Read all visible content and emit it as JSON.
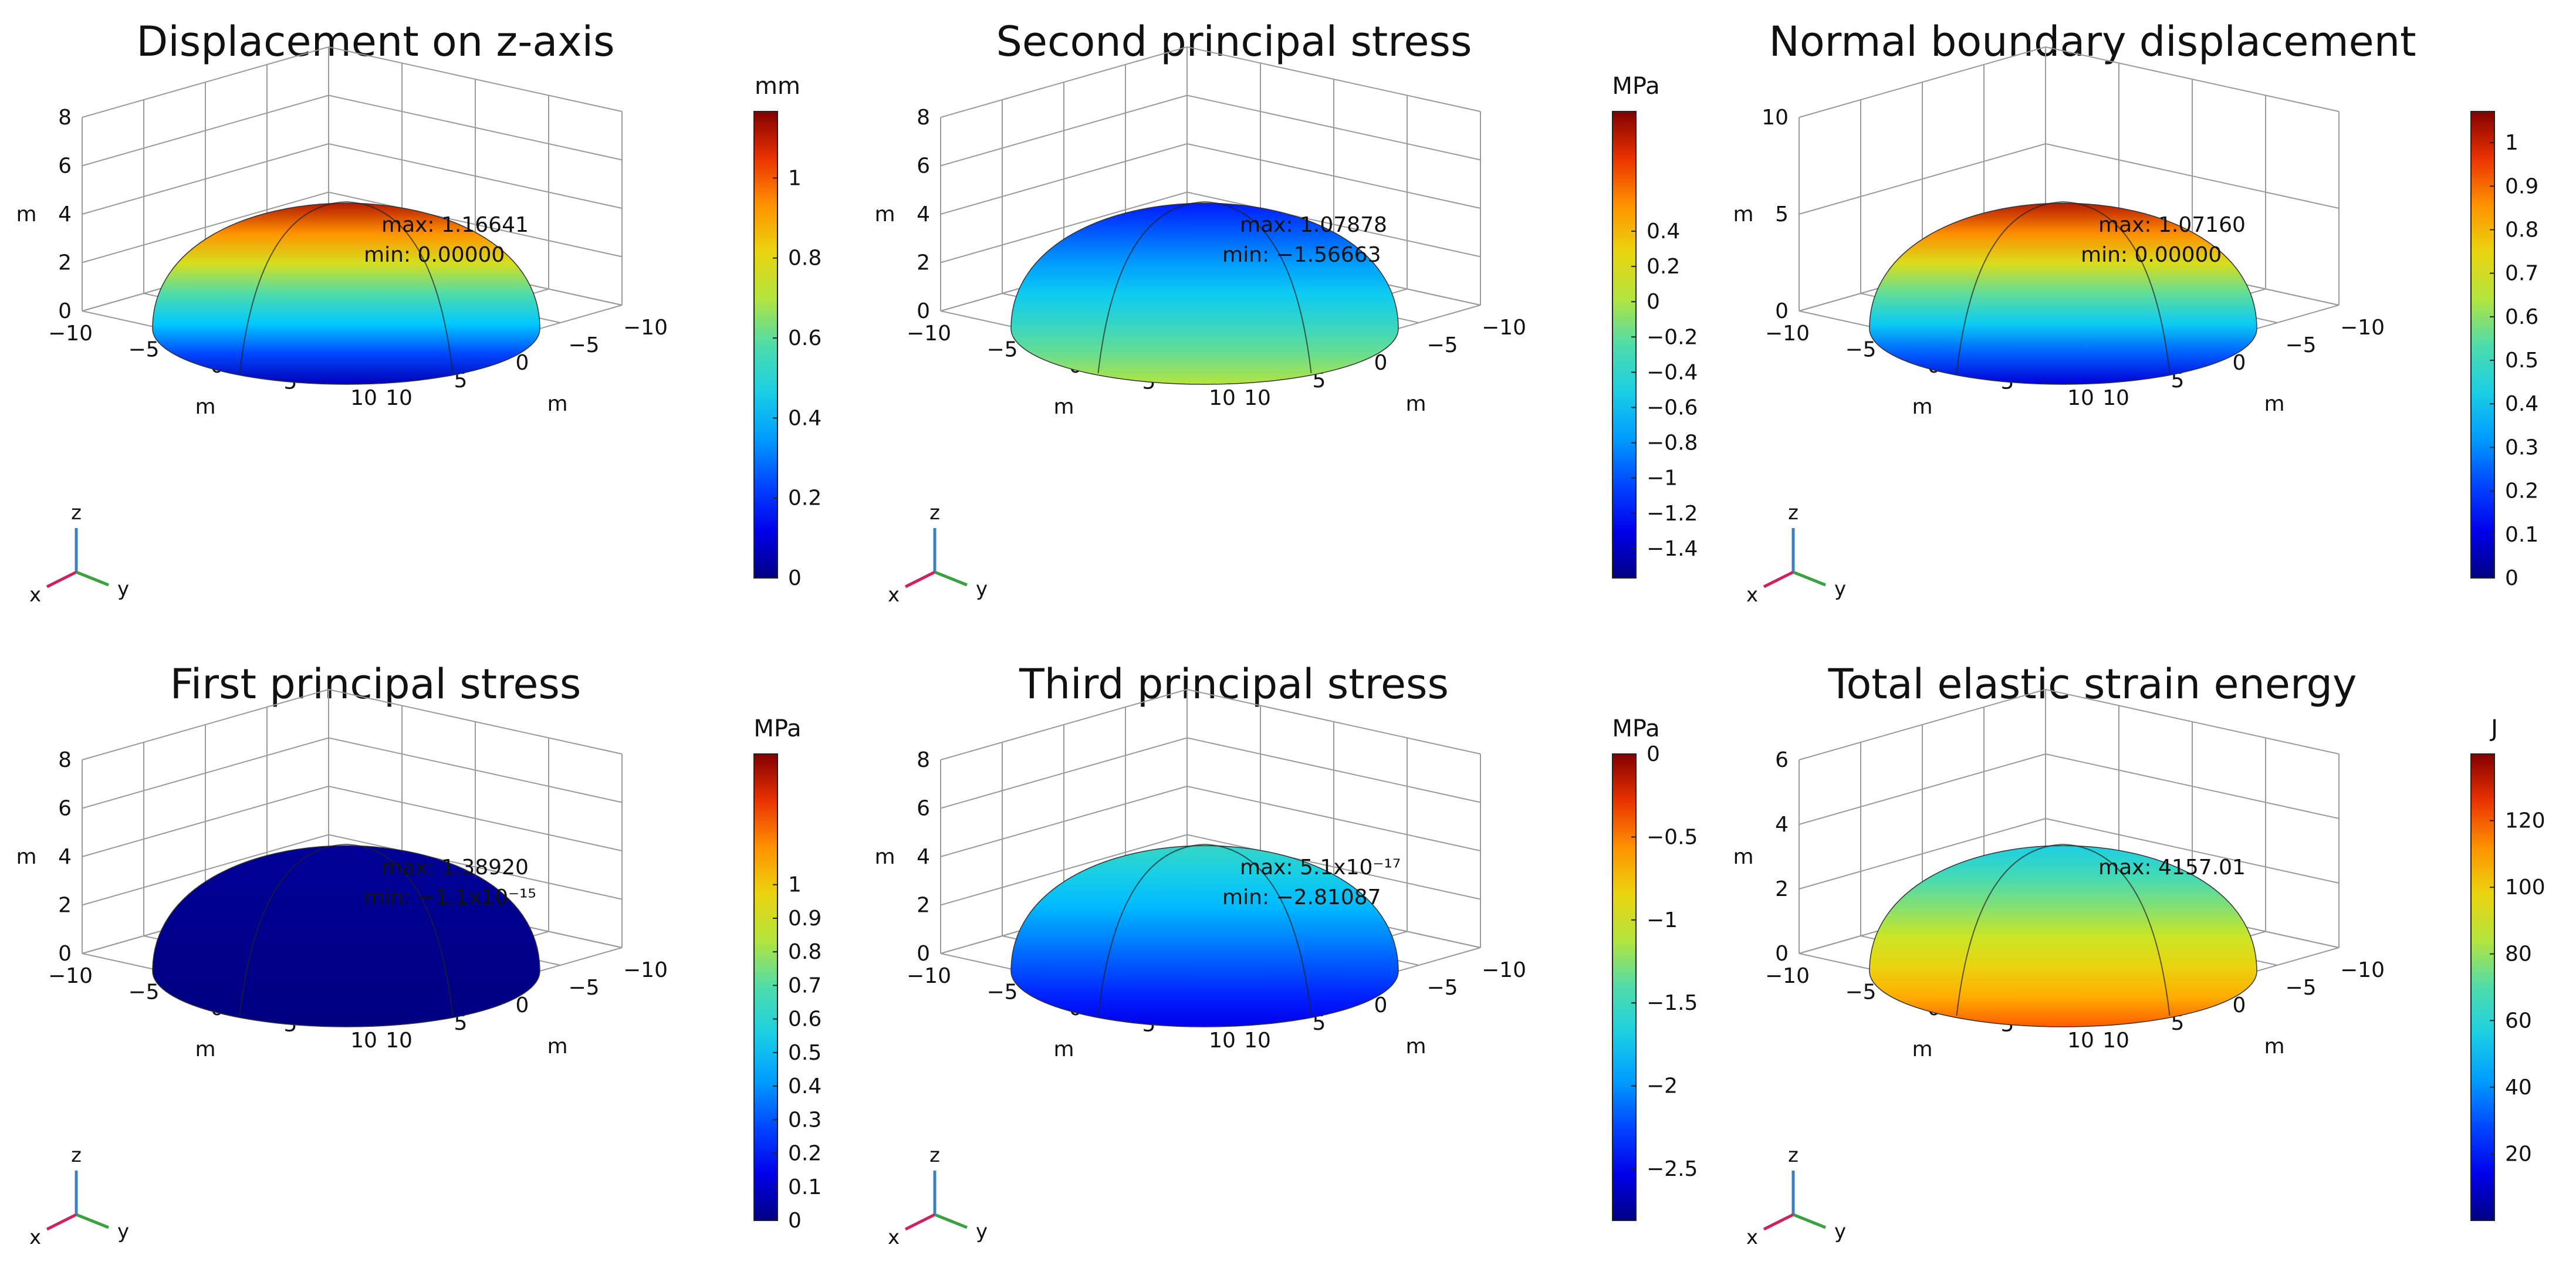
{
  "chart_data": [
    {
      "type": "3d-surface",
      "title": "Displacement on z-axis",
      "unit": "mm",
      "colorbar_ticks": [
        "0",
        "0.2",
        "0.4",
        "0.6",
        "0.8",
        "1"
      ],
      "colorbar_range": [
        0,
        1.16641
      ],
      "z_ticks": [
        "0",
        "2",
        "4",
        "6",
        "8"
      ],
      "x_ticks": [
        "−10",
        "−5",
        "0",
        "5",
        "10"
      ],
      "y_ticks": [
        "−10",
        "−5",
        "0",
        "5",
        "10"
      ],
      "axis_unit": "m",
      "max_label": "max: 1.16641",
      "min_label": "min: 0.00000",
      "colormap": "rainbow",
      "dome_top_value": 0.95,
      "dome_base_value": 0.05,
      "triad": {
        "x": "x",
        "y": "y",
        "z": "z"
      }
    },
    {
      "type": "3d-surface",
      "title": "Second principal stress",
      "unit": "MPa",
      "colorbar_ticks": [
        "−1.4",
        "−1.2",
        "−1",
        "−0.8",
        "−0.6",
        "−0.4",
        "−0.2",
        "0",
        "0.2",
        "0.4"
      ],
      "colorbar_range": [
        -1.56663,
        1.07878
      ],
      "z_ticks": [
        "0",
        "2",
        "4",
        "6",
        "8"
      ],
      "x_ticks": [
        "−10",
        "−5",
        "0",
        "5",
        "10"
      ],
      "y_ticks": [
        "−10",
        "−5",
        "0",
        "5",
        "10"
      ],
      "axis_unit": "m",
      "max_label": "max: 1.07878",
      "min_label": "min: −1.56663",
      "colormap": "rainbow",
      "dome_top_value": 0.15,
      "dome_base_value": 0.6,
      "triad": {
        "x": "x",
        "y": "y",
        "z": "z"
      }
    },
    {
      "type": "3d-surface",
      "title": "Normal boundary displacement",
      "unit": "",
      "colorbar_ticks": [
        "0",
        "0.1",
        "0.2",
        "0.3",
        "0.4",
        "0.5",
        "0.6",
        "0.7",
        "0.8",
        "0.9",
        "1"
      ],
      "colorbar_range": [
        0,
        1.0716
      ],
      "z_ticks": [
        "0",
        "5",
        "10"
      ],
      "x_ticks": [
        "−10",
        "−5",
        "0",
        "5",
        "10"
      ],
      "y_ticks": [
        "−10",
        "−5",
        "0",
        "5",
        "10"
      ],
      "axis_unit": "m",
      "max_label": "max: 1.07160",
      "min_label": "min: 0.00000",
      "colormap": "rainbow",
      "dome_top_value": 0.95,
      "dome_base_value": 0.08,
      "triad": {
        "x": "x",
        "y": "y",
        "z": "z"
      }
    },
    {
      "type": "3d-surface",
      "title": "First principal stress",
      "unit": "MPa",
      "colorbar_ticks": [
        "0",
        "0.1",
        "0.2",
        "0.3",
        "0.4",
        "0.5",
        "0.6",
        "0.7",
        "0.8",
        "0.9",
        "1"
      ],
      "colorbar_range": [
        0,
        1.3892
      ],
      "z_ticks": [
        "0",
        "2",
        "4",
        "6",
        "8"
      ],
      "x_ticks": [
        "−10",
        "−5",
        "0",
        "5",
        "10"
      ],
      "y_ticks": [
        "−10",
        "−5",
        "0",
        "5",
        "10"
      ],
      "axis_unit": "m",
      "max_label": "max: 1.38920",
      "min_label": "min: −1.1x10⁻¹⁵",
      "colormap": "rainbow",
      "dome_top_value": 0.02,
      "dome_base_value": 0.0,
      "triad": {
        "x": "x",
        "y": "y",
        "z": "z"
      }
    },
    {
      "type": "3d-surface",
      "title": "Third principal stress",
      "unit": "MPa",
      "colorbar_ticks": [
        "−2.5",
        "−2",
        "−1.5",
        "−1",
        "−0.5",
        "0"
      ],
      "colorbar_range": [
        -2.81087,
        0
      ],
      "z_ticks": [
        "0",
        "2",
        "4",
        "6",
        "8"
      ],
      "x_ticks": [
        "−10",
        "−5",
        "0",
        "5",
        "10"
      ],
      "y_ticks": [
        "−10",
        "−5",
        "0",
        "5",
        "10"
      ],
      "axis_unit": "m",
      "max_label": "max: 5.1x10⁻¹⁷",
      "min_label": "min: −2.81087",
      "colormap": "rainbow",
      "dome_top_value": 0.45,
      "dome_base_value": 0.1,
      "triad": {
        "x": "x",
        "y": "y",
        "z": "z"
      }
    },
    {
      "type": "3d-surface",
      "title": "Total elastic strain energy",
      "unit": "J",
      "colorbar_ticks": [
        "20",
        "40",
        "60",
        "80",
        "100",
        "120"
      ],
      "colorbar_range": [
        0,
        140
      ],
      "z_ticks": [
        "0",
        "2",
        "4",
        "6"
      ],
      "x_ticks": [
        "−10",
        "−5",
        "0",
        "5",
        "10"
      ],
      "y_ticks": [
        "−10",
        "−5",
        "0",
        "5",
        "10"
      ],
      "axis_unit": "m",
      "max_label": "max: 4157.01",
      "min_label": "",
      "colormap": "rainbow",
      "dome_top_value": 0.4,
      "dome_base_value": 0.85,
      "triad": {
        "x": "x",
        "y": "y",
        "z": "z"
      }
    }
  ]
}
